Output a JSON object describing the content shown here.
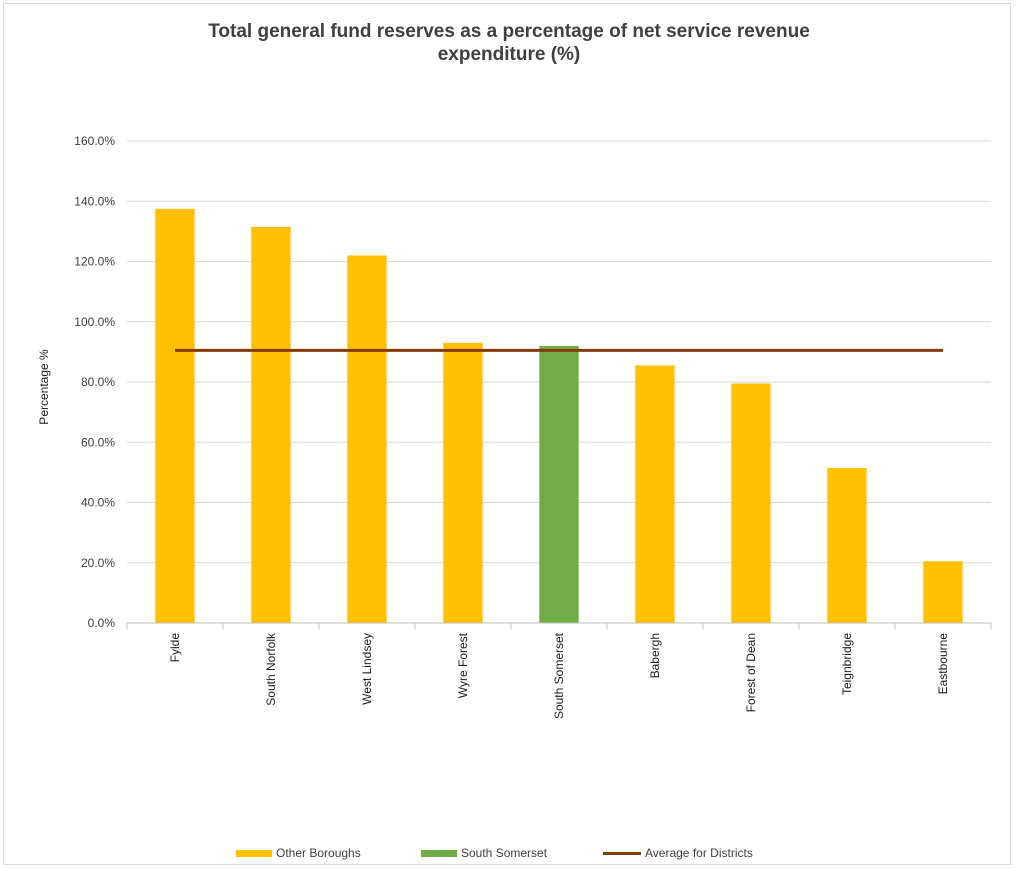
{
  "chart_data": {
    "type": "bar",
    "title_lines": [
      "Total general fund reserves as a percentage of net service revenue",
      "expenditure (%)"
    ],
    "xlabel": "",
    "ylabel": "Percentage %",
    "ylim": [
      0,
      160
    ],
    "yticks": [
      0,
      20,
      40,
      60,
      80,
      100,
      120,
      140,
      160
    ],
    "ytick_labels": [
      "0.0%",
      "20.0%",
      "40.0%",
      "60.0%",
      "80.0%",
      "100.0%",
      "120.0%",
      "140.0%",
      "160.0%"
    ],
    "grid": true,
    "legend_position": "bottom",
    "categories": [
      "Fylde",
      "South Norfolk",
      "West Lindsey",
      "Wyre Forest",
      "South Somerset",
      "Babergh",
      "Forest of Dean",
      "Teignbridge",
      "Eastbourne"
    ],
    "values": [
      137.5,
      131.5,
      122.0,
      93.0,
      92.0,
      85.5,
      79.5,
      51.5,
      20.5
    ],
    "bar_series": [
      {
        "name": "Other Boroughs",
        "color": "#ffc000"
      },
      {
        "name": "South Somerset",
        "color": "#70ad47"
      }
    ],
    "highlight_category": "South Somerset",
    "average_line": {
      "name": "Average for Districts",
      "value": 90.5,
      "color": "#843c0c"
    },
    "gridline_color": "#d9d9d9"
  }
}
